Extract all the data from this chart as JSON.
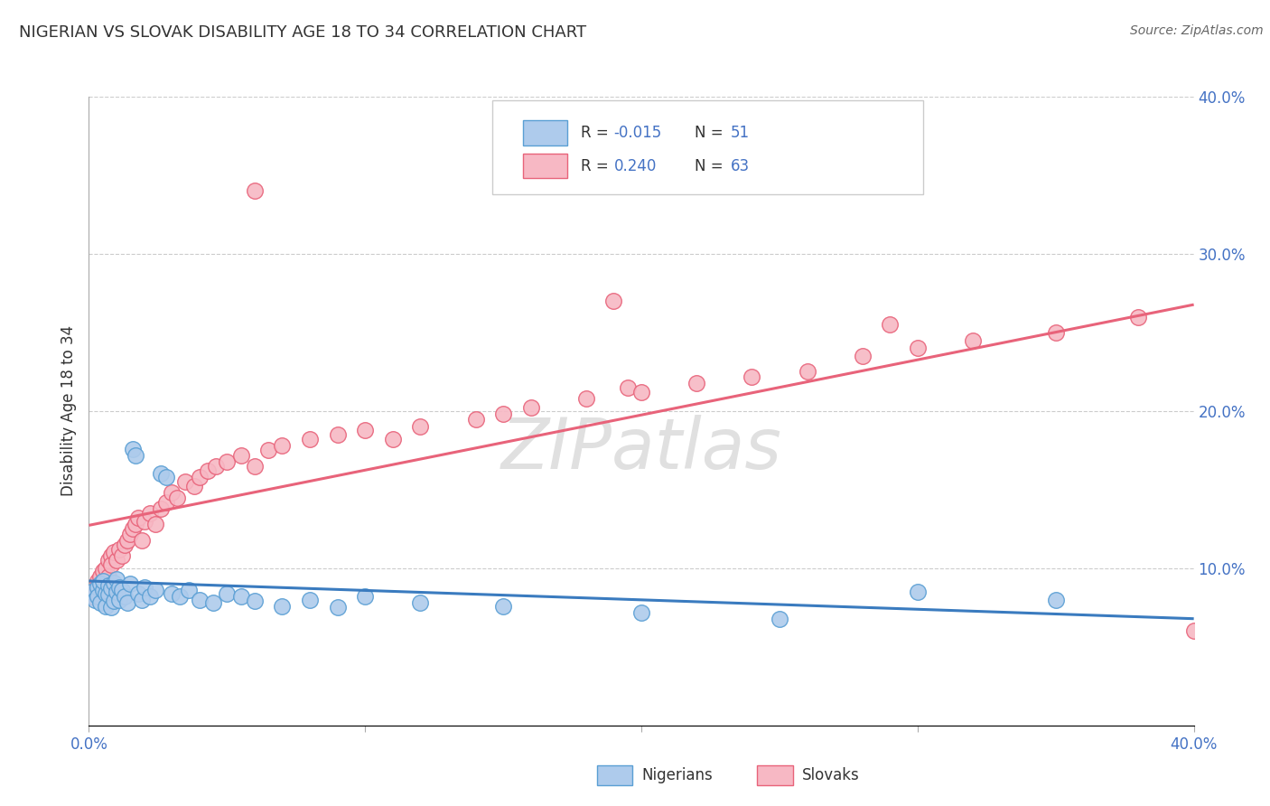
{
  "title": "NIGERIAN VS SLOVAK DISABILITY AGE 18 TO 34 CORRELATION CHART",
  "source": "Source: ZipAtlas.com",
  "ylabel": "Disability Age 18 to 34",
  "xlim": [
    0.0,
    0.4
  ],
  "ylim": [
    0.0,
    0.4
  ],
  "nigerian_R": -0.015,
  "nigerian_N": 51,
  "slovak_R": 0.24,
  "slovak_N": 63,
  "nigerian_color": "#aecbec",
  "slovak_color": "#f7b8c4",
  "nigerian_edge_color": "#5a9fd4",
  "slovak_edge_color": "#e8637a",
  "nigerian_line_color": "#3a7bbf",
  "slovak_line_color": "#e8637a",
  "axis_color": "#4472c4",
  "text_color": "#333333",
  "grid_color": "#cccccc",
  "background_color": "#ffffff",
  "watermark_color": "#e0e0e0"
}
